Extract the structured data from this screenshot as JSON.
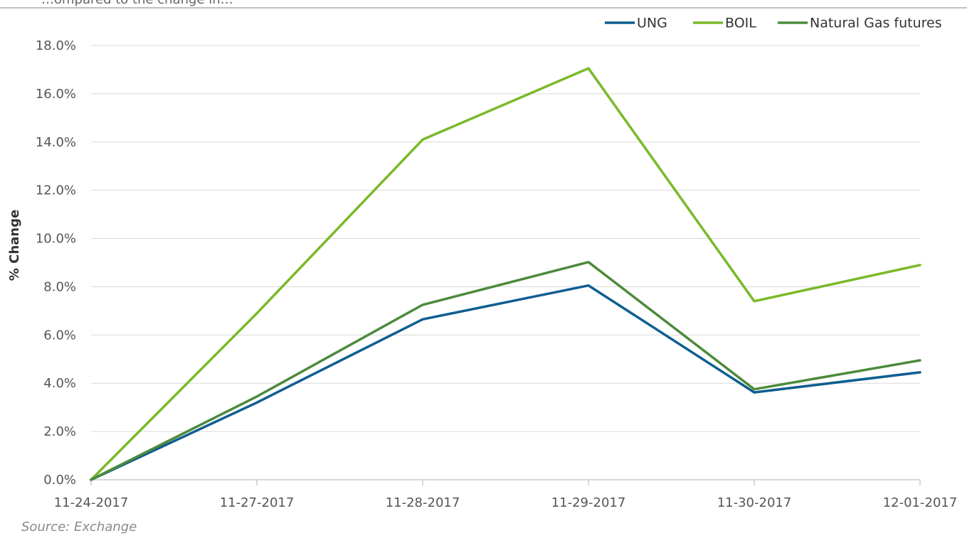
{
  "header": {
    "title_fragment": "…ompared to the change in…"
  },
  "footer": {
    "source": "Source: Exchange"
  },
  "chart_data": {
    "type": "line",
    "categories": [
      "11-24-2017",
      "11-27-2017",
      "11-28-2017",
      "11-29-2017",
      "11-30-2017",
      "12-01-2017"
    ],
    "ylabel": "% Change",
    "xlabel": "",
    "ylim": [
      0,
      18
    ],
    "y_ticks": [
      "0.0%",
      "2.0%",
      "4.0%",
      "6.0%",
      "8.0%",
      "10.0%",
      "12.0%",
      "14.0%",
      "16.0%",
      "18.0%"
    ],
    "y_tick_values": [
      0,
      2,
      4,
      6,
      8,
      10,
      12,
      14,
      16,
      18
    ],
    "grid": "horizontal",
    "legend_position": "top-right",
    "series": [
      {
        "name": "UNG",
        "color": "#0f5e91",
        "values": [
          0.0,
          3.2,
          6.65,
          8.05,
          3.62,
          4.45
        ]
      },
      {
        "name": "BOIL",
        "color": "#7ab929",
        "values": [
          0.0,
          6.9,
          14.1,
          17.05,
          7.4,
          8.9
        ]
      },
      {
        "name": "Natural Gas futures",
        "color": "#4c8a3c",
        "values": [
          0.0,
          3.45,
          7.25,
          9.02,
          3.75,
          4.95
        ]
      }
    ]
  }
}
